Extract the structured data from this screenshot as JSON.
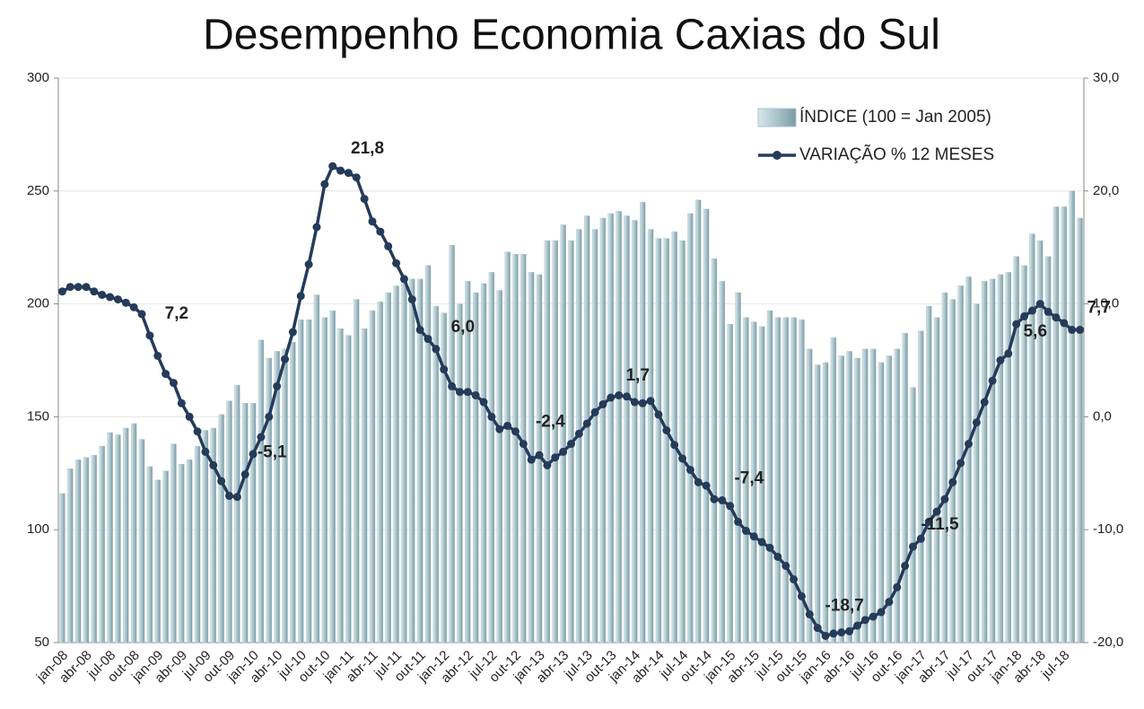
{
  "chart_data": {
    "type": "bar_line",
    "title": "Desempenho Economia Caxias do Sul",
    "categories": [
      "jan-08",
      null,
      null,
      "abr-08",
      null,
      null,
      "jul-08",
      null,
      null,
      "out-08",
      null,
      null,
      "jan-09",
      null,
      null,
      "abr-09",
      null,
      null,
      "jul-09",
      null,
      null,
      "out-09",
      null,
      null,
      "jan-10",
      null,
      null,
      "abr-10",
      null,
      null,
      "jul-10",
      null,
      null,
      "out-10",
      null,
      null,
      "jan-11",
      null,
      null,
      "abr-11",
      null,
      null,
      "jul-11",
      null,
      null,
      "out-11",
      null,
      null,
      "jan-12",
      null,
      null,
      "abr-12",
      null,
      null,
      "jul-12",
      null,
      null,
      "out-12",
      null,
      null,
      "jan-13",
      null,
      null,
      "abr-13",
      null,
      null,
      "jul-13",
      null,
      null,
      "out-13",
      null,
      null,
      "jan-14",
      null,
      null,
      "abr-14",
      null,
      null,
      "jul-14",
      null,
      null,
      "out-14",
      null,
      null,
      "jan-15",
      null,
      null,
      "abr-15",
      null,
      null,
      "jul-15",
      null,
      null,
      "out-15",
      null,
      null,
      "jan-16",
      null,
      null,
      "abr-16",
      null,
      null,
      "jul-16",
      null,
      null,
      "out-16",
      null,
      null,
      "jan-17",
      null,
      null,
      "abr-17",
      null,
      null,
      "jul-17",
      null,
      null,
      "out-17",
      null,
      null,
      "jan-18",
      null,
      null,
      "abr-18",
      null,
      null,
      "jul-18",
      null,
      null
    ],
    "series": [
      {
        "name": "ÍNDICE (100 = Jan 2005)",
        "type": "bar",
        "color": "#a9c3cb",
        "values": [
          116,
          127,
          131,
          132,
          133,
          137,
          143,
          142,
          145,
          147,
          140,
          128,
          122,
          126,
          138,
          129,
          131,
          137,
          144,
          145,
          151,
          157,
          164,
          156,
          156,
          184,
          176,
          179,
          180,
          183,
          193,
          193,
          204,
          194,
          197,
          189,
          186,
          202,
          189,
          197,
          201,
          205,
          208,
          211,
          211,
          211,
          217,
          199,
          196,
          226,
          200,
          210,
          205,
          209,
          214,
          206,
          223,
          222,
          222,
          214,
          213,
          228,
          228,
          235,
          228,
          233,
          239,
          233,
          238,
          240,
          241,
          239,
          237,
          245,
          233,
          229,
          229,
          232,
          228,
          240,
          246,
          242,
          220,
          210,
          191,
          205,
          194,
          192,
          190,
          197,
          194,
          194,
          194,
          193,
          180,
          173,
          174,
          185,
          177,
          179,
          176,
          180,
          180,
          174,
          177,
          180,
          187,
          163,
          188,
          199,
          194,
          205,
          202,
          208,
          212,
          200,
          210,
          211,
          213,
          214,
          221,
          217,
          231,
          228,
          221,
          243,
          243,
          250,
          238
        ]
      },
      {
        "name": "VARIAÇÃO % 12 MESES",
        "type": "line",
        "axis": "y2",
        "color": "#243b5a",
        "values": [
          11.1,
          11.5,
          11.5,
          11.5,
          11.1,
          10.8,
          10.6,
          10.4,
          10.1,
          9.7,
          9.1,
          7.2,
          5.4,
          3.8,
          3.0,
          1.2,
          0.0,
          -1.3,
          -3.1,
          -4.3,
          -5.7,
          -7.0,
          -7.1,
          -5.1,
          -3.3,
          -1.8,
          0.0,
          2.7,
          5.1,
          7.5,
          10.7,
          13.5,
          16.8,
          20.6,
          22.2,
          21.8,
          21.6,
          21.2,
          19.3,
          17.3,
          16.4,
          15.1,
          13.6,
          12.2,
          10.4,
          7.7,
          6.9,
          6.0,
          4.2,
          2.7,
          2.2,
          2.2,
          1.9,
          1.3,
          0.0,
          -1.1,
          -0.8,
          -1.3,
          -2.4,
          -3.8,
          -3.4,
          -4.3,
          -3.6,
          -3.1,
          -2.4,
          -1.5,
          -0.6,
          0.4,
          1.1,
          1.7,
          1.9,
          1.8,
          1.3,
          1.2,
          1.4,
          0.2,
          -1.2,
          -2.5,
          -3.7,
          -4.7,
          -5.8,
          -6.1,
          -7.3,
          -7.4,
          -7.9,
          -9.3,
          -10.1,
          -10.6,
          -11.1,
          -11.6,
          -12.4,
          -13.2,
          -14.4,
          -15.9,
          -17.5,
          -18.7,
          -19.4,
          -19.2,
          -19.1,
          -19.0,
          -18.5,
          -18.0,
          -17.7,
          -17.3,
          -16.4,
          -15.1,
          -13.2,
          -11.5,
          -10.8,
          -9.3,
          -8.4,
          -7.3,
          -5.8,
          -4.1,
          -2.4,
          -0.5,
          1.3,
          3.2,
          5.0,
          5.6,
          8.2,
          8.9,
          9.4,
          10.0,
          9.3,
          8.8,
          8.3,
          7.7,
          7.7
        ],
        "value_labels": [
          null,
          null,
          null,
          null,
          null,
          null,
          null,
          null,
          null,
          null,
          null,
          "7,2",
          null,
          null,
          null,
          null,
          null,
          null,
          null,
          null,
          null,
          null,
          null,
          "-5,1",
          null,
          null,
          null,
          null,
          null,
          null,
          null,
          null,
          null,
          null,
          null,
          "21,8",
          null,
          null,
          null,
          null,
          null,
          null,
          null,
          null,
          null,
          null,
          null,
          "6,0",
          null,
          null,
          null,
          null,
          null,
          null,
          null,
          null,
          null,
          null,
          "-2,4",
          null,
          null,
          null,
          null,
          null,
          null,
          null,
          null,
          null,
          null,
          "1,7",
          null,
          null,
          null,
          null,
          null,
          null,
          null,
          null,
          null,
          null,
          null,
          null,
          null,
          "-7,4",
          null,
          null,
          null,
          null,
          null,
          null,
          null,
          null,
          null,
          null,
          null,
          "-18,7",
          null,
          null,
          null,
          null,
          null,
          null,
          null,
          null,
          null,
          null,
          null,
          "-11,5",
          null,
          null,
          null,
          null,
          null,
          null,
          null,
          null,
          null,
          null,
          null,
          "5,6",
          null,
          null,
          null,
          null,
          null,
          null,
          null,
          "7,7",
          null
        ]
      }
    ],
    "ylim": [
      50,
      300
    ],
    "yticks": [
      50,
      100,
      150,
      200,
      250,
      300
    ],
    "y2lim": [
      -20,
      30
    ],
    "y2ticks": [
      {
        "value": -20,
        "label": "-20,0"
      },
      {
        "value": -10,
        "label": "-10,0"
      },
      {
        "value": 0,
        "label": "0,0"
      },
      {
        "value": 10,
        "label": "10,0"
      },
      {
        "value": 20,
        "label": "20,0"
      },
      {
        "value": 30,
        "label": "30,0"
      }
    ],
    "grid": true,
    "legend": "upper right"
  }
}
